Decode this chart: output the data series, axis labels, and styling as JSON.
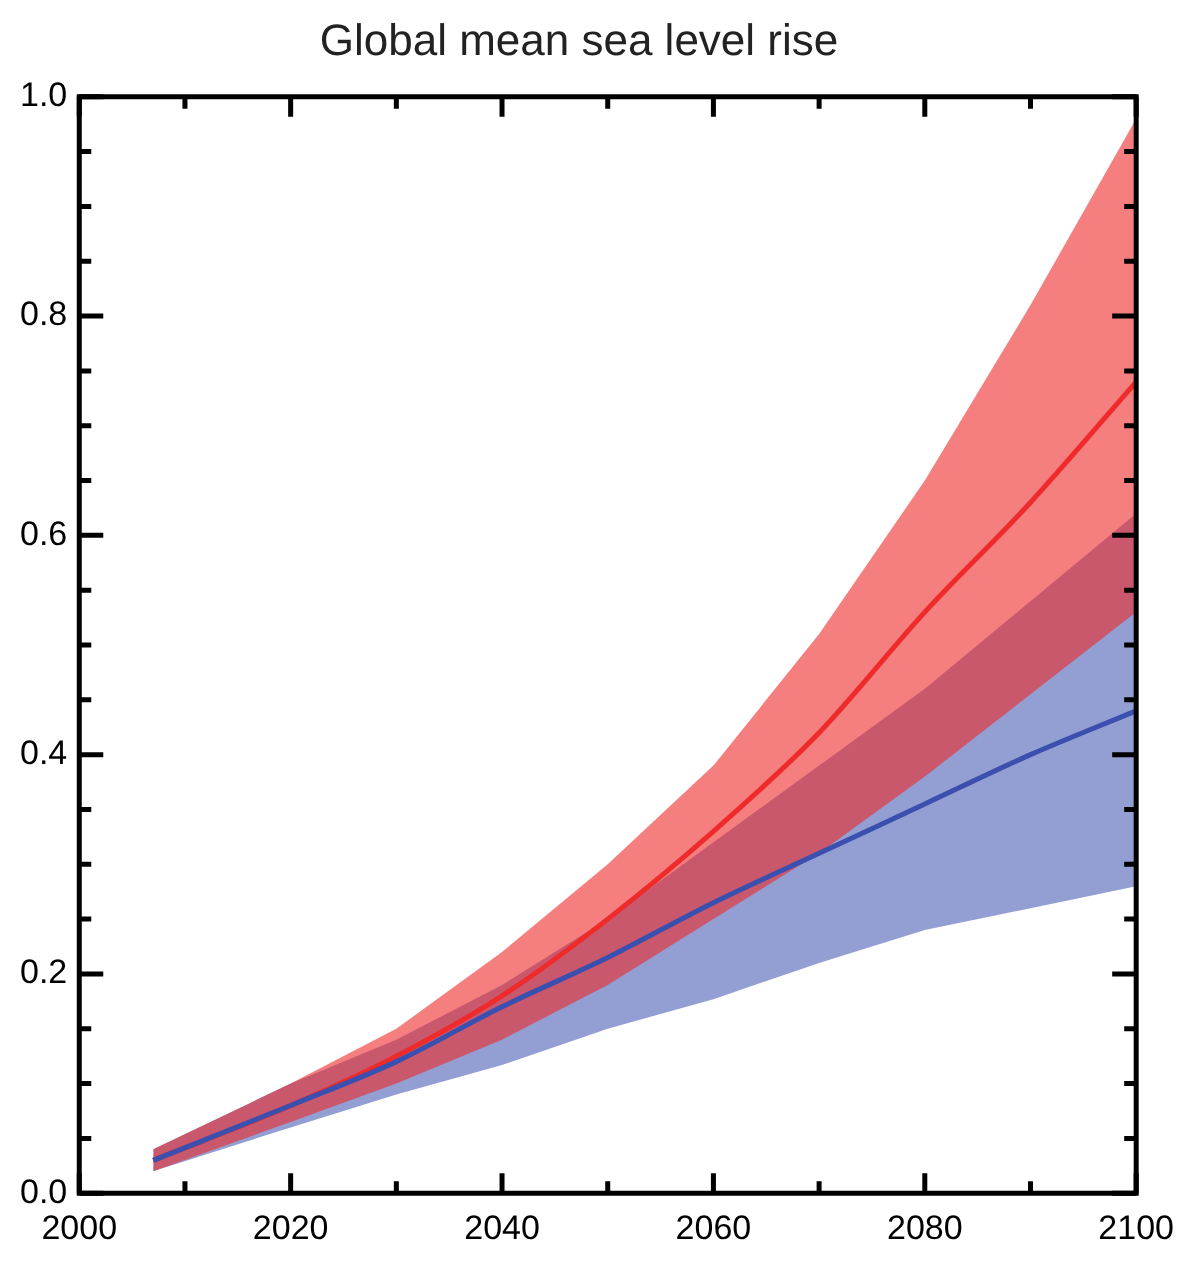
{
  "chart_data": {
    "type": "line",
    "title": "Global mean sea level rise",
    "x": [
      2007,
      2020,
      2030,
      2040,
      2050,
      2060,
      2070,
      2080,
      2090,
      2100
    ],
    "series": [
      {
        "color": "#3a4fae",
        "values": [
          0.03,
          0.08,
          0.12,
          0.17,
          0.215,
          0.265,
          0.31,
          0.355,
          0.4,
          0.44
        ],
        "lower": [
          0.02,
          0.06,
          0.09,
          0.117,
          0.15,
          0.177,
          0.21,
          0.24,
          0.26,
          0.28
        ],
        "upper": [
          0.04,
          0.1,
          0.14,
          0.19,
          0.25,
          0.32,
          0.39,
          0.46,
          0.54,
          0.62
        ]
      },
      {
        "color": "#ee2a2a",
        "values": [
          0.03,
          0.08,
          0.125,
          0.18,
          0.25,
          0.33,
          0.42,
          0.53,
          0.63,
          0.74
        ],
        "lower": [
          0.02,
          0.065,
          0.1,
          0.14,
          0.19,
          0.25,
          0.31,
          0.38,
          0.455,
          0.53
        ],
        "upper": [
          0.04,
          0.1,
          0.15,
          0.22,
          0.3,
          0.39,
          0.51,
          0.65,
          0.81,
          0.98
        ]
      }
    ],
    "xlim": [
      2000,
      2100
    ],
    "xticks": [
      2000,
      {
        "value": 2010,
        "label": null
      },
      2020,
      {
        "value": 2030,
        "label": null
      },
      2040,
      {
        "value": 2050,
        "label": null
      },
      2060,
      {
        "value": 2070,
        "label": null
      },
      2080,
      {
        "value": 2090,
        "label": null
      },
      2100
    ],
    "ylim": [
      0,
      1
    ],
    "yticks": [
      "0.0",
      {
        "value": 0.05,
        "label": null
      },
      {
        "value": 0.1,
        "label": null
      },
      {
        "value": 0.15,
        "label": null
      },
      {
        "value": 0.2,
        "label": "0.2"
      },
      {
        "value": 0.25,
        "label": null
      },
      {
        "value": 0.3,
        "label": null
      },
      {
        "value": 0.35,
        "label": null
      },
      {
        "value": 0.4,
        "label": "0.4"
      },
      {
        "value": 0.45,
        "label": null
      },
      {
        "value": 0.5,
        "label": null
      },
      {
        "value": 0.55,
        "label": null
      },
      {
        "value": 0.6,
        "label": "0.6"
      },
      {
        "value": 0.65,
        "label": null
      },
      {
        "value": 0.7,
        "label": null
      },
      {
        "value": 0.75,
        "label": null
      },
      {
        "value": 0.8,
        "label": "0.8"
      },
      {
        "value": 0.85,
        "label": null
      },
      {
        "value": 0.9,
        "label": null
      },
      {
        "value": 0.95,
        "label": null
      },
      {
        "value": 1,
        "label": "1.0"
      }
    ],
    "grid": false,
    "legend": false,
    "marker": "none",
    "line_style": "solid"
  }
}
